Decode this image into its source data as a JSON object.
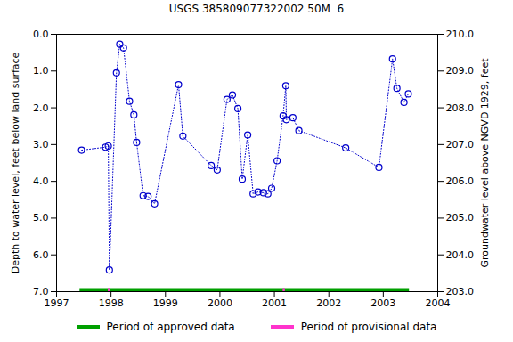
{
  "chart_data": {
    "type": "line",
    "title": "USGS 385809077322002 50M  6",
    "y_label": "Depth to water level, feet below land surface",
    "y2_label": "Groundwater level above NGVD 1929, feet",
    "x": [
      1997.46,
      1997.9,
      1997.95,
      1997.97,
      1998.1,
      1998.16,
      1998.23,
      1998.34,
      1998.42,
      1998.47,
      1998.59,
      1998.68,
      1998.8,
      1999.24,
      1999.32,
      1999.84,
      1999.95,
      2000.13,
      2000.23,
      2000.33,
      2000.41,
      2000.51,
      2000.61,
      2000.7,
      2000.8,
      2000.88,
      2000.95,
      2001.05,
      2001.16,
      2001.21,
      2001.22,
      2001.34,
      2001.45,
      2002.31,
      2002.92,
      2003.17,
      2003.25,
      2003.38,
      2003.46
    ],
    "values": [
      3.15,
      3.07,
      3.04,
      6.41,
      1.05,
      0.27,
      0.37,
      1.82,
      2.19,
      2.94,
      4.39,
      4.41,
      4.61,
      1.37,
      2.77,
      3.57,
      3.69,
      1.77,
      1.65,
      2.02,
      3.94,
      2.74,
      4.34,
      4.29,
      4.31,
      4.34,
      4.19,
      3.44,
      2.22,
      1.4,
      2.32,
      2.27,
      2.62,
      3.09,
      3.62,
      0.67,
      1.47,
      1.85,
      1.62
    ],
    "color": "#0000cc",
    "marker": "circle",
    "line_style": "dotted",
    "xlim": [
      1997,
      2004
    ],
    "xticks": [
      1997,
      1998,
      1999,
      2000,
      2001,
      2002,
      2003,
      2004
    ],
    "ylim": [
      0,
      7
    ],
    "yticks": [
      {
        "value": 0,
        "label": "0.0"
      },
      {
        "value": 1,
        "label": "1.0"
      },
      {
        "value": 2,
        "label": "2.0"
      },
      {
        "value": 3,
        "label": "3.0"
      },
      {
        "value": 4,
        "label": "4.0"
      },
      {
        "value": 5,
        "label": "5.0"
      },
      {
        "value": 6,
        "label": "6.0"
      },
      {
        "value": 7,
        "label": "7.0"
      }
    ],
    "y2lim": [
      210,
      203
    ],
    "y2ticks": [
      {
        "value": 210,
        "label": "210.0"
      },
      {
        "value": 209,
        "label": "209.0"
      },
      {
        "value": 208,
        "label": "208.0"
      },
      {
        "value": 207,
        "label": "207.0"
      },
      {
        "value": 206,
        "label": "206.0"
      },
      {
        "value": 205,
        "label": "205.0"
      },
      {
        "value": 204,
        "label": "204.0"
      },
      {
        "value": 203,
        "label": "203.0"
      }
    ],
    "period_level": 6.95,
    "periods": [
      {
        "name": "Period of approved data",
        "color": "#00a000",
        "ranges": [
          [
            1997.43,
            2003.48
          ]
        ]
      },
      {
        "name": "Period of provisional data",
        "color": "#ff33cc",
        "ranges": [
          [
            1997.95,
            1997.99
          ],
          [
            2001.16,
            2001.2
          ]
        ]
      }
    ]
  }
}
